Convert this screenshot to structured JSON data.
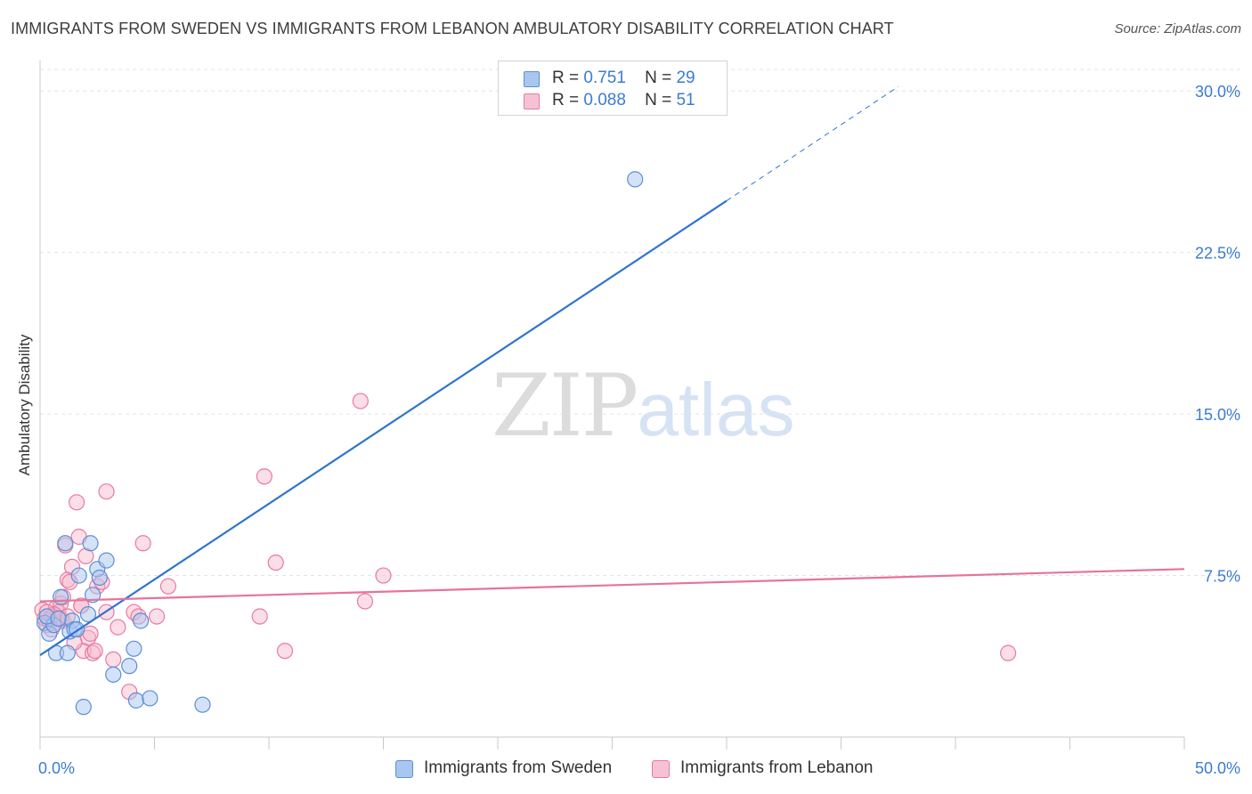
{
  "title": "IMMIGRANTS FROM SWEDEN VS IMMIGRANTS FROM LEBANON AMBULATORY DISABILITY CORRELATION CHART",
  "source": "Source: ZipAtlas.com",
  "watermark": {
    "zip": "ZIP",
    "atlas": "atlas"
  },
  "colors": {
    "sweden_fill": "#a9c6ef",
    "sweden_stroke": "#5b8fd6",
    "sweden_line": "#2f74d0",
    "lebanon_fill": "#f6b6ca",
    "lebanon_stroke": "#e87aa0",
    "lebanon_line": "#e8729a",
    "tick_label": "#3a7bd5",
    "grid": "#e3e3e3"
  },
  "legend": {
    "sweden": {
      "r_label": "R =",
      "r_value": "0.751",
      "n_label": "N =",
      "n_value": "29"
    },
    "lebanon": {
      "r_label": "R =",
      "r_value": "0.088",
      "n_label": "N =",
      "n_value": "51"
    }
  },
  "chart_data": {
    "type": "scatter",
    "title": "IMMIGRANTS FROM SWEDEN VS IMMIGRANTS FROM LEBANON AMBULATORY DISABILITY CORRELATION CHART",
    "xlabel": "",
    "ylabel": "Ambulatory Disability",
    "xlim": [
      0,
      50
    ],
    "ylim": [
      0,
      31
    ],
    "x_tick_labels": [
      "0.0%",
      "50.0%"
    ],
    "y_ticks": [
      7.5,
      15.0,
      22.5,
      30.0
    ],
    "y_tick_labels": [
      "7.5%",
      "15.0%",
      "22.5%",
      "30.0%"
    ],
    "grid": true,
    "legend_position": "top-center",
    "series": [
      {
        "name": "Immigrants from Sweden",
        "points": [
          [
            0.2,
            5.3
          ],
          [
            0.4,
            4.8
          ],
          [
            0.6,
            5.2
          ],
          [
            0.7,
            3.9
          ],
          [
            0.9,
            6.5
          ],
          [
            1.1,
            9.0
          ],
          [
            1.2,
            3.9
          ],
          [
            1.3,
            4.9
          ],
          [
            1.4,
            5.4
          ],
          [
            1.5,
            5.0
          ],
          [
            1.7,
            7.5
          ],
          [
            1.9,
            1.4
          ],
          [
            2.1,
            5.7
          ],
          [
            2.2,
            9.0
          ],
          [
            2.3,
            6.6
          ],
          [
            2.5,
            7.8
          ],
          [
            2.6,
            7.4
          ],
          [
            2.9,
            8.2
          ],
          [
            3.2,
            2.9
          ],
          [
            3.9,
            3.3
          ],
          [
            4.1,
            4.1
          ],
          [
            4.2,
            1.7
          ],
          [
            4.4,
            5.4
          ],
          [
            4.8,
            1.8
          ],
          [
            7.1,
            1.5
          ],
          [
            26.0,
            25.9
          ],
          [
            0.3,
            5.6
          ],
          [
            0.8,
            5.5
          ],
          [
            1.6,
            5.0
          ]
        ],
        "trend": {
          "x0": 0.0,
          "y0": 3.8,
          "x1": 30.0,
          "y1": 24.9,
          "dashed_to_x": 37.5,
          "dashed_to_y": 30.2
        }
      },
      {
        "name": "Immigrants from Lebanon",
        "points": [
          [
            0.1,
            5.9
          ],
          [
            0.2,
            5.5
          ],
          [
            0.3,
            5.2
          ],
          [
            0.4,
            5.4
          ],
          [
            0.5,
            5.6
          ],
          [
            0.6,
            5.3
          ],
          [
            0.7,
            6.0
          ],
          [
            0.8,
            5.8
          ],
          [
            0.9,
            6.2
          ],
          [
            1.0,
            5.4
          ],
          [
            1.1,
            8.9
          ],
          [
            1.2,
            7.3
          ],
          [
            1.3,
            7.2
          ],
          [
            1.4,
            7.9
          ],
          [
            1.6,
            10.9
          ],
          [
            1.7,
            9.3
          ],
          [
            1.8,
            6.1
          ],
          [
            1.9,
            4.0
          ],
          [
            2.0,
            8.4
          ],
          [
            2.1,
            4.6
          ],
          [
            2.2,
            4.8
          ],
          [
            2.3,
            3.9
          ],
          [
            2.5,
            7.0
          ],
          [
            2.7,
            7.2
          ],
          [
            2.9,
            11.4
          ],
          [
            2.9,
            5.8
          ],
          [
            3.2,
            3.6
          ],
          [
            3.4,
            5.1
          ],
          [
            3.9,
            2.1
          ],
          [
            4.1,
            5.8
          ],
          [
            4.3,
            5.6
          ],
          [
            4.5,
            9.0
          ],
          [
            5.1,
            5.6
          ],
          [
            5.6,
            7.0
          ],
          [
            9.6,
            5.6
          ],
          [
            9.8,
            12.1
          ],
          [
            10.3,
            8.1
          ],
          [
            10.7,
            4.0
          ],
          [
            14.0,
            15.6
          ],
          [
            14.2,
            6.3
          ],
          [
            15.0,
            7.5
          ],
          [
            42.3,
            3.9
          ],
          [
            0.9,
            5.5
          ],
          [
            1.5,
            4.4
          ],
          [
            0.5,
            5.0
          ],
          [
            2.4,
            4.0
          ],
          [
            1.2,
            5.6
          ],
          [
            0.6,
            5.7
          ],
          [
            1.0,
            6.5
          ],
          [
            1.8,
            6.1
          ],
          [
            0.3,
            5.8
          ]
        ],
        "trend": {
          "x0": 0.0,
          "y0": 6.3,
          "x1": 50.0,
          "y1": 7.8
        }
      }
    ]
  },
  "bottom_legend": {
    "sweden_label": "Immigrants from Sweden",
    "lebanon_label": "Immigrants from Lebanon"
  }
}
